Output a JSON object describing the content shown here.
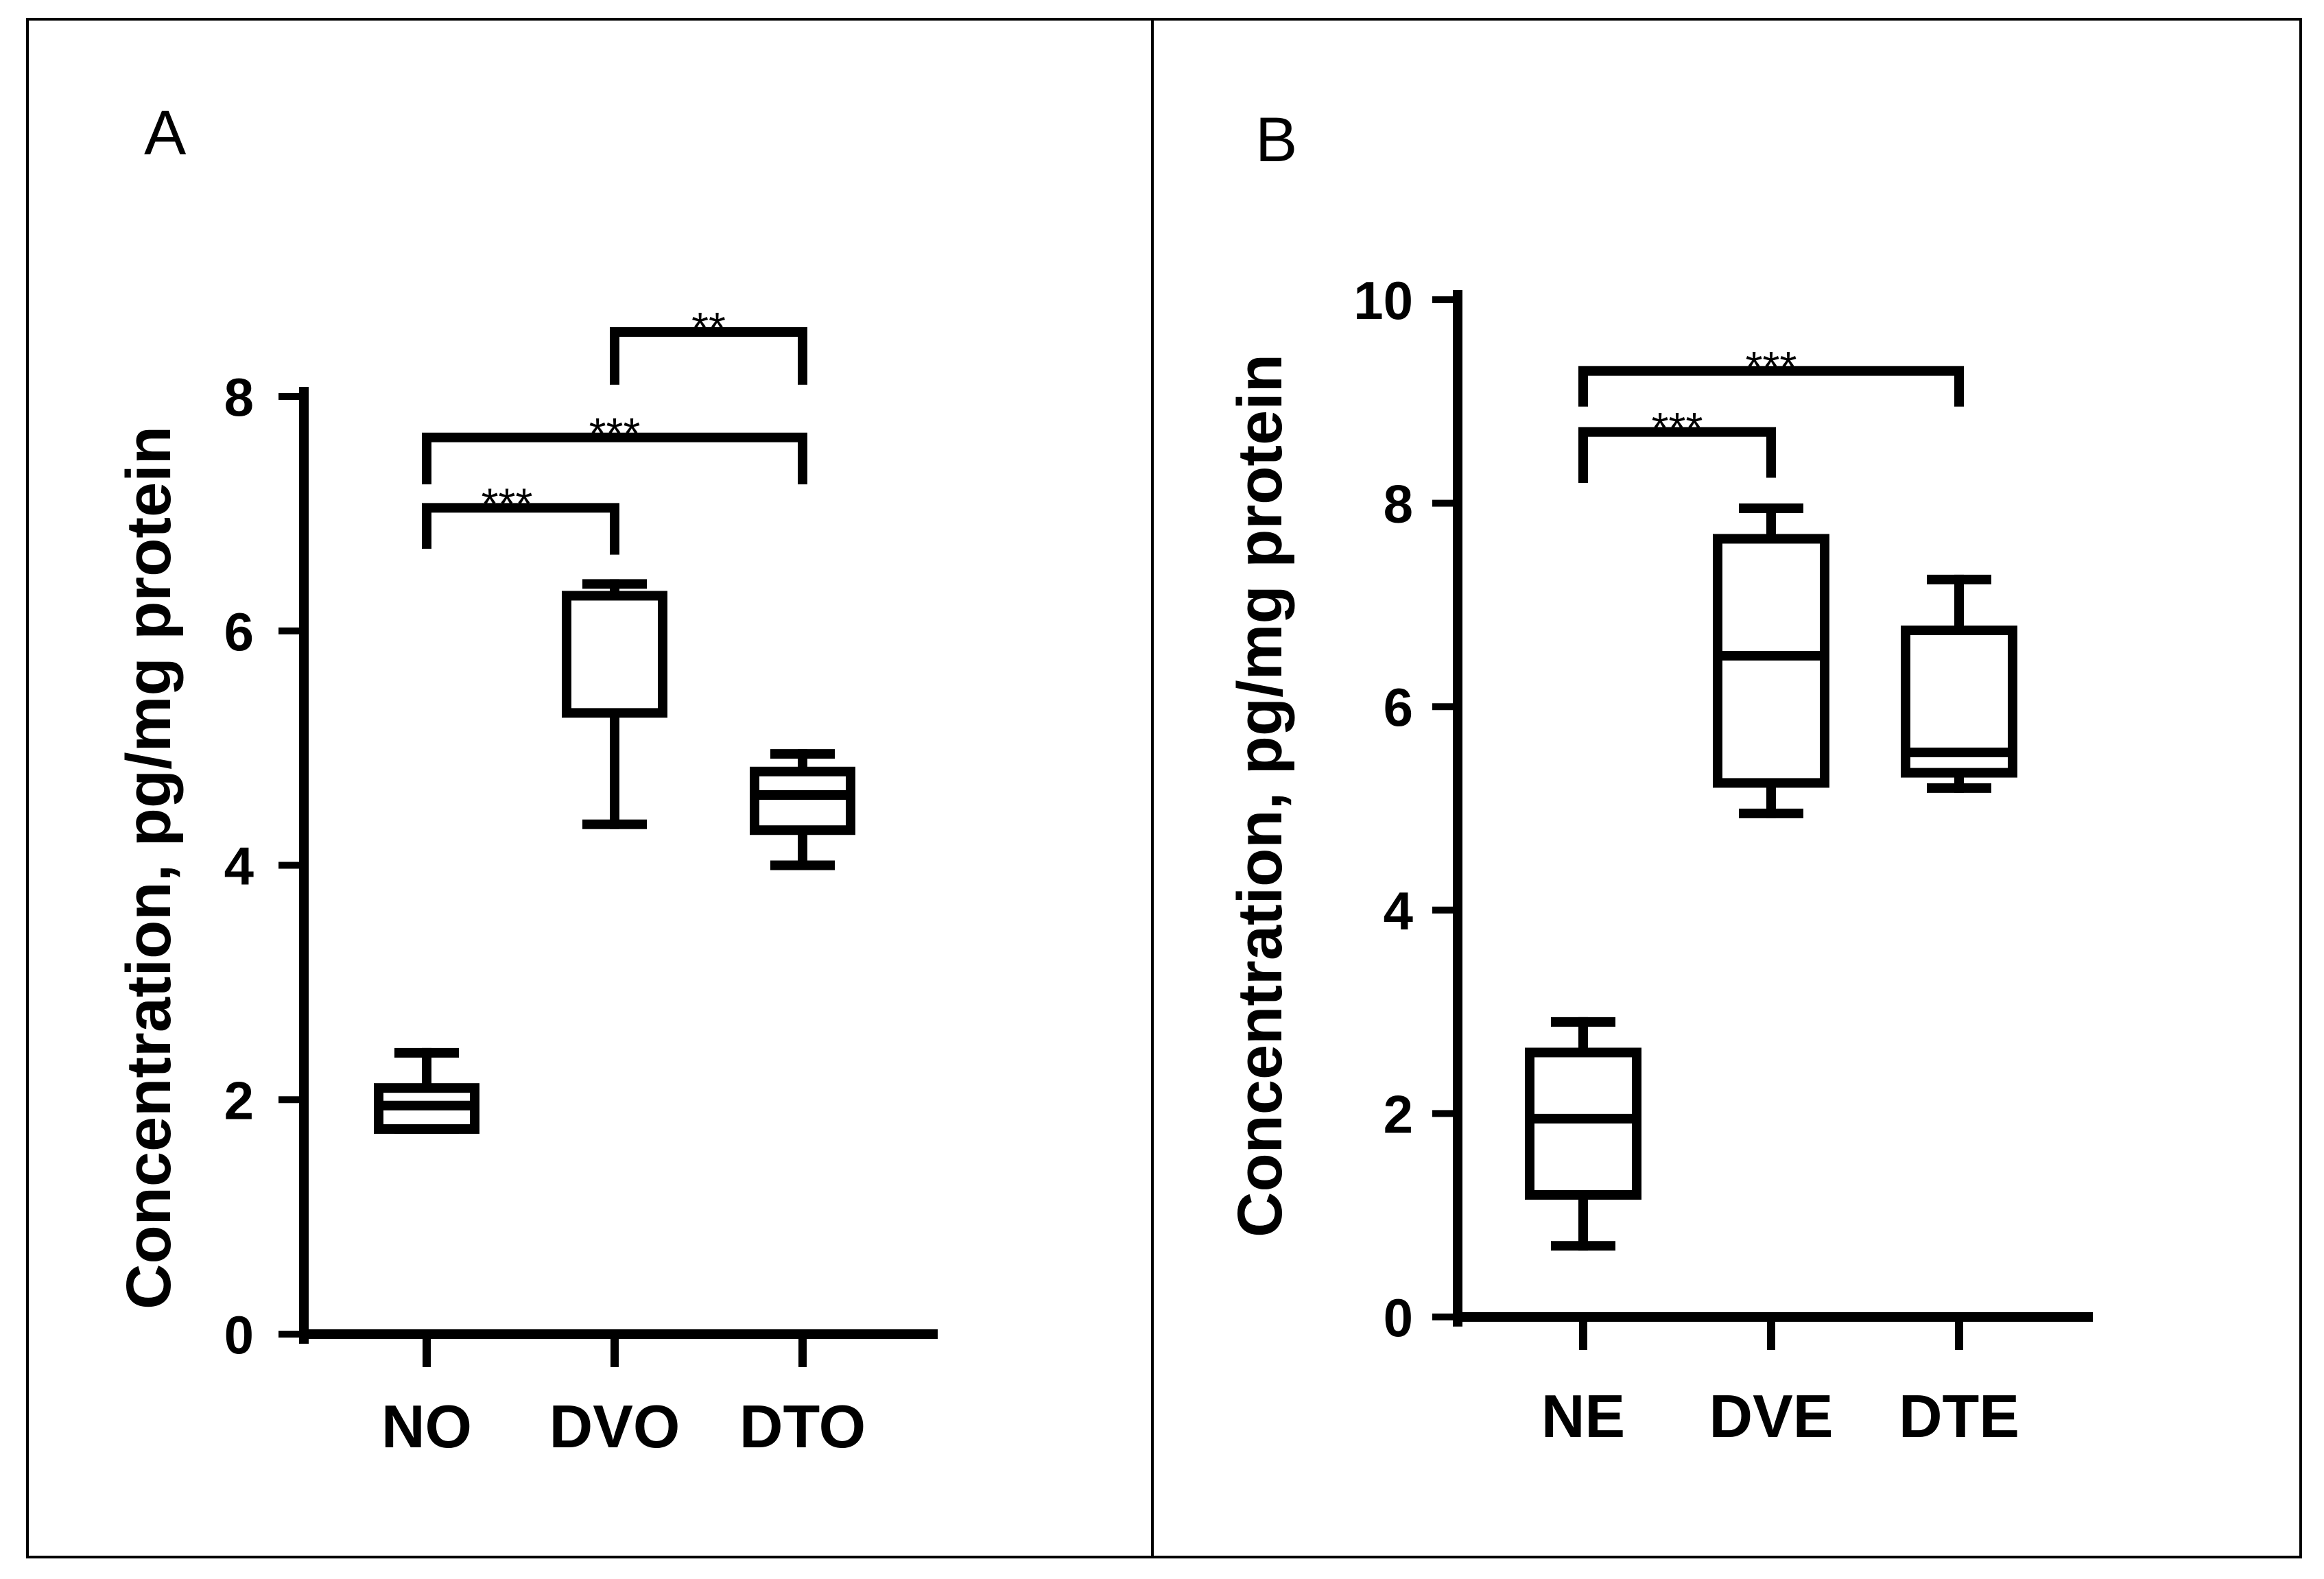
{
  "chart_data": [
    {
      "type": "box",
      "panel_label": "A",
      "ylabel": "Concentration, pg/mg protein",
      "ylim": [
        0,
        8
      ],
      "yticks": [
        0,
        2,
        4,
        6,
        8
      ],
      "ytick_labels": [
        "0",
        "2",
        "4",
        "6",
        "8"
      ],
      "categories": [
        "NO",
        "DVO",
        "DTO"
      ],
      "boxes": [
        {
          "category": "NO",
          "min": 1.75,
          "q1": 1.75,
          "median": 1.95,
          "q3": 2.1,
          "max": 2.4
        },
        {
          "category": "DVO",
          "min": 4.35,
          "q1": 5.3,
          "median": 6.3,
          "q3": 6.3,
          "max": 6.4
        },
        {
          "category": "DTO",
          "min": 4.0,
          "q1": 4.3,
          "median": 4.6,
          "q3": 4.8,
          "max": 4.95
        }
      ],
      "significance": [
        {
          "from": "NO",
          "to": "DVO",
          "label": "***",
          "level": 7.05,
          "left_drop": 6.7,
          "right_drop": 6.65
        },
        {
          "from": "NO",
          "to": "DTO",
          "label": "***",
          "level": 7.65,
          "left_drop": 7.25,
          "right_drop": 7.25
        },
        {
          "from": "DVO",
          "to": "DTO",
          "label": "**",
          "level": 8.55,
          "left_drop": 8.1,
          "right_drop": 8.1
        }
      ]
    },
    {
      "type": "box",
      "panel_label": "B",
      "ylabel": "Concentration, pg/mg protein",
      "ylim": [
        0,
        10
      ],
      "yticks": [
        0,
        2,
        4,
        6,
        8,
        10
      ],
      "ytick_labels": [
        "0",
        "2",
        "4",
        "6",
        "8",
        "10"
      ],
      "categories": [
        "NE",
        "DVE",
        "DTE"
      ],
      "boxes": [
        {
          "category": "NE",
          "min": 0.7,
          "q1": 1.2,
          "median": 1.95,
          "q3": 2.6,
          "max": 2.9
        },
        {
          "category": "DVE",
          "min": 4.95,
          "q1": 5.25,
          "median": 6.5,
          "q3": 7.65,
          "max": 7.95
        },
        {
          "category": "DTE",
          "min": 5.2,
          "q1": 5.35,
          "median": 5.55,
          "q3": 6.75,
          "max": 7.25
        }
      ],
      "significance": [
        {
          "from": "NE",
          "to": "DVE",
          "label": "***",
          "level": 8.7,
          "left_drop": 8.2,
          "right_drop": 8.25
        },
        {
          "from": "NE",
          "to": "DTE",
          "label": "***",
          "level": 9.3,
          "left_drop": 8.95,
          "right_drop": 8.95
        }
      ]
    }
  ]
}
